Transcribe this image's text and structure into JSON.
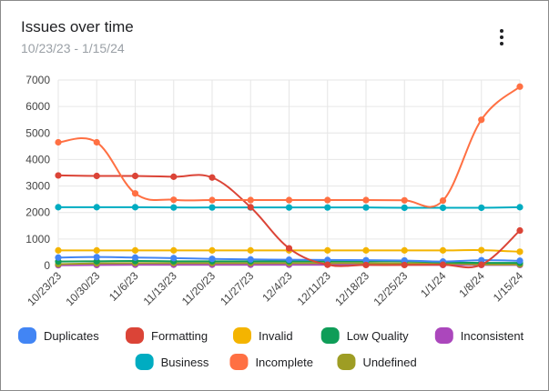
{
  "header": {
    "title": "Issues over time",
    "subtitle": "10/23/23 - 1/15/24",
    "menu_icon": "more-vert-icon"
  },
  "chart_data": {
    "type": "line",
    "title": "Issues over time",
    "subtitle": "10/23/23 - 1/15/24",
    "xlabel": "",
    "ylabel": "",
    "categories": [
      "10/23/23",
      "10/30/23",
      "11/6/23",
      "11/13/23",
      "11/20/23",
      "11/27/23",
      "12/4/23",
      "12/11/23",
      "12/18/23",
      "12/25/23",
      "1/1/24",
      "1/8/24",
      "1/15/24"
    ],
    "ylim": [
      0,
      7000
    ],
    "yticks": [
      0,
      1000,
      2000,
      3000,
      4000,
      5000,
      6000,
      7000
    ],
    "grid": true,
    "legend_position": "bottom",
    "series": [
      {
        "name": "Duplicates",
        "color": "#4285f4",
        "values": [
          300,
          320,
          300,
          280,
          250,
          230,
          220,
          210,
          200,
          190,
          150,
          200,
          180
        ]
      },
      {
        "name": "Formatting",
        "color": "#db4437",
        "values": [
          3400,
          3380,
          3380,
          3350,
          3320,
          2200,
          650,
          30,
          20,
          20,
          30,
          30,
          1320
        ]
      },
      {
        "name": "Invalid",
        "color": "#f4b400",
        "values": [
          570,
          570,
          570,
          570,
          570,
          570,
          570,
          570,
          570,
          570,
          570,
          580,
          520
        ]
      },
      {
        "name": "Low Quality",
        "color": "#0f9d58",
        "values": [
          150,
          160,
          170,
          160,
          160,
          160,
          160,
          160,
          160,
          160,
          120,
          100,
          100
        ]
      },
      {
        "name": "Inconsistent",
        "color": "#ab47bc",
        "values": [
          10,
          20,
          30,
          30,
          30,
          30,
          30,
          30,
          30,
          30,
          20,
          20,
          20
        ]
      },
      {
        "name": "Business",
        "color": "#00acc1",
        "values": [
          2200,
          2200,
          2200,
          2190,
          2190,
          2190,
          2190,
          2190,
          2190,
          2180,
          2180,
          2180,
          2200
        ]
      },
      {
        "name": "Incomplete",
        "color": "#ff7043",
        "values": [
          4650,
          4650,
          2720,
          2480,
          2470,
          2470,
          2470,
          2470,
          2470,
          2460,
          2450,
          5500,
          6750
        ]
      },
      {
        "name": "Undefined",
        "color": "#9e9d24",
        "values": [
          50,
          80,
          90,
          90,
          90,
          90,
          90,
          90,
          90,
          80,
          80,
          40,
          40
        ]
      }
    ]
  }
}
